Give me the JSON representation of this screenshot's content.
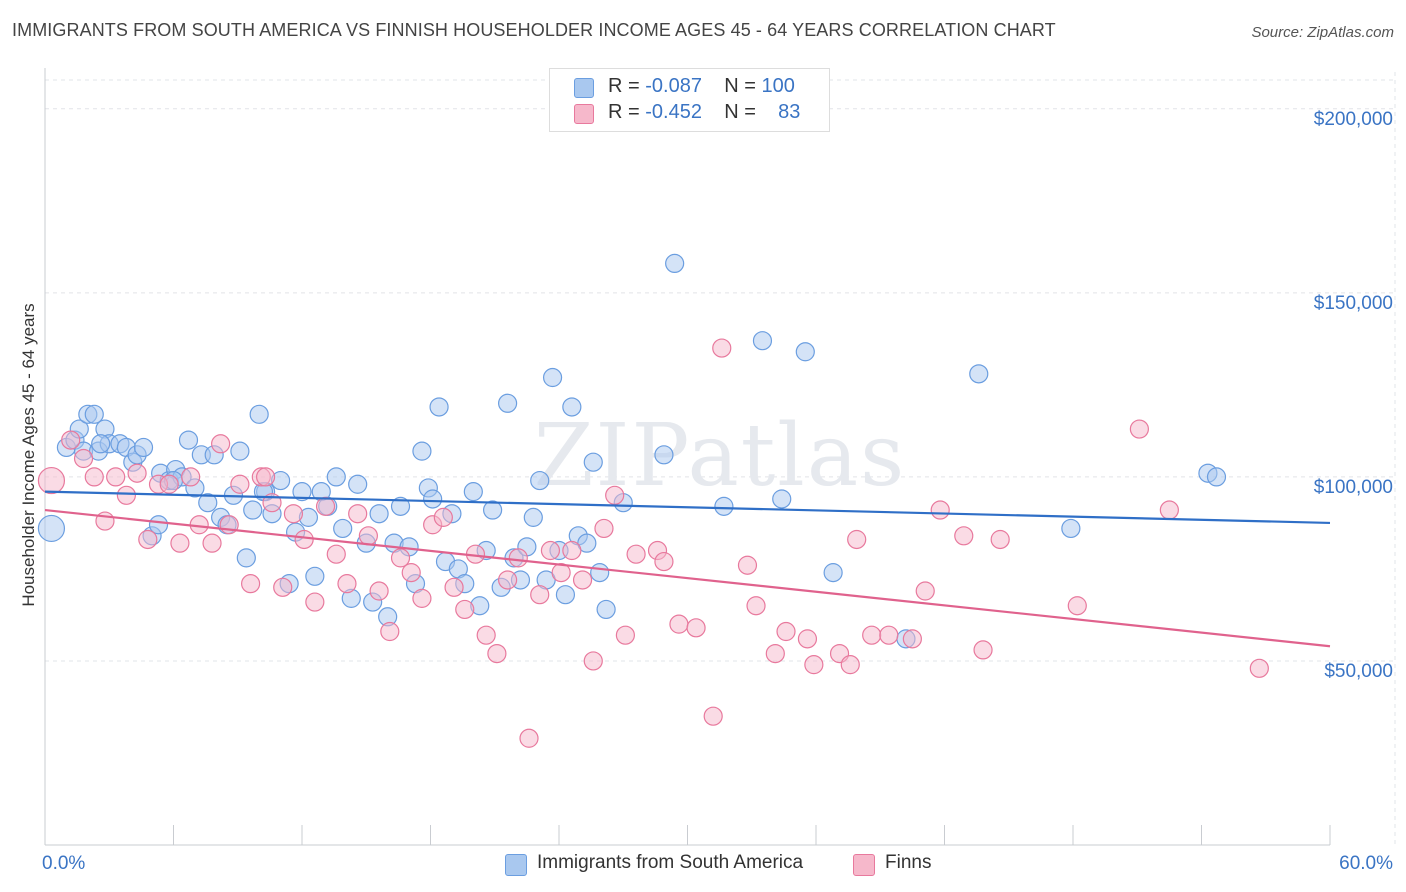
{
  "title": "IMMIGRANTS FROM SOUTH AMERICA VS FINNISH HOUSEHOLDER INCOME AGES 45 - 64 YEARS CORRELATION CHART",
  "source": "Source: ZipAtlas.com",
  "watermark": "ZIPatlas",
  "legend": {
    "rows": [
      {
        "r_label": "R = ",
        "r_value": "-0.087",
        "n_label": "N = ",
        "n_value": "100",
        "color": "#a9c8ef"
      },
      {
        "r_label": "R = ",
        "r_value": "-0.452",
        "n_label": "N = ",
        "n_value": "83",
        "color": "#f6b8cb"
      }
    ]
  },
  "bottom_legend": {
    "blue": "Immigrants from South America",
    "pink": "Finns"
  },
  "chart_data": {
    "type": "scatter",
    "title": "IMMIGRANTS FROM SOUTH AMERICA VS FINNISH HOUSEHOLDER INCOME AGES 45 - 64 YEARS CORRELATION CHART",
    "xlabel": "",
    "ylabel": "Householder Income Ages 45 - 64 years",
    "xlim": [
      0,
      60
    ],
    "ylim": [
      0,
      210000
    ],
    "x_tick_labels": [
      "0.0%",
      "60.0%"
    ],
    "y_ticks": [
      {
        "value": 50000,
        "label": "$50,000"
      },
      {
        "value": 100000,
        "label": "$100,000"
      },
      {
        "value": 150000,
        "label": "$150,000"
      },
      {
        "value": 200000,
        "label": "$200,000"
      }
    ],
    "grid": true,
    "legend_placement": "top-center",
    "series": [
      {
        "name": "Immigrants from South America",
        "color": "#6b9ee0",
        "fill": "#a9c8ef",
        "trend": {
          "x": [
            0,
            60
          ],
          "y": [
            96000,
            87500
          ]
        },
        "points": [
          [
            0.3,
            86000
          ],
          [
            1.0,
            108000
          ],
          [
            1.4,
            110000
          ],
          [
            1.6,
            113000
          ],
          [
            1.8,
            107000
          ],
          [
            2.0,
            117000
          ],
          [
            2.3,
            117000
          ],
          [
            2.5,
            107000
          ],
          [
            2.8,
            113000
          ],
          [
            3.0,
            109000
          ],
          [
            3.5,
            109000
          ],
          [
            3.8,
            108000
          ],
          [
            4.1,
            104000
          ],
          [
            4.3,
            106000
          ],
          [
            4.6,
            108000
          ],
          [
            5.0,
            84000
          ],
          [
            5.3,
            87000
          ],
          [
            5.4,
            101000
          ],
          [
            5.8,
            99000
          ],
          [
            6.1,
            102000
          ],
          [
            6.4,
            100000
          ],
          [
            6.7,
            110000
          ],
          [
            7.0,
            97000
          ],
          [
            7.3,
            106000
          ],
          [
            7.6,
            93000
          ],
          [
            7.9,
            106000
          ],
          [
            8.2,
            89000
          ],
          [
            8.5,
            87000
          ],
          [
            8.8,
            95000
          ],
          [
            9.1,
            107000
          ],
          [
            9.4,
            78000
          ],
          [
            9.7,
            91000
          ],
          [
            10.0,
            117000
          ],
          [
            10.3,
            96000
          ],
          [
            10.6,
            90000
          ],
          [
            11.0,
            99000
          ],
          [
            11.4,
            71000
          ],
          [
            11.7,
            85000
          ],
          [
            12.0,
            96000
          ],
          [
            12.3,
            89000
          ],
          [
            12.6,
            73000
          ],
          [
            12.9,
            96000
          ],
          [
            13.2,
            92000
          ],
          [
            13.6,
            100000
          ],
          [
            13.9,
            86000
          ],
          [
            14.3,
            67000
          ],
          [
            14.6,
            98000
          ],
          [
            15.0,
            82000
          ],
          [
            15.3,
            66000
          ],
          [
            15.6,
            90000
          ],
          [
            16.0,
            62000
          ],
          [
            16.3,
            82000
          ],
          [
            16.6,
            92000
          ],
          [
            17.0,
            81000
          ],
          [
            17.3,
            71000
          ],
          [
            17.6,
            107000
          ],
          [
            17.9,
            97000
          ],
          [
            18.1,
            94000
          ],
          [
            18.4,
            119000
          ],
          [
            18.7,
            77000
          ],
          [
            19.0,
            90000
          ],
          [
            19.3,
            75000
          ],
          [
            19.6,
            71000
          ],
          [
            20.0,
            96000
          ],
          [
            20.3,
            65000
          ],
          [
            20.6,
            80000
          ],
          [
            20.9,
            91000
          ],
          [
            21.3,
            70000
          ],
          [
            21.6,
            120000
          ],
          [
            21.9,
            78000
          ],
          [
            22.2,
            72000
          ],
          [
            22.5,
            81000
          ],
          [
            22.8,
            89000
          ],
          [
            23.1,
            99000
          ],
          [
            23.4,
            72000
          ],
          [
            23.7,
            127000
          ],
          [
            24.0,
            80000
          ],
          [
            24.3,
            68000
          ],
          [
            24.6,
            119000
          ],
          [
            24.9,
            84000
          ],
          [
            25.3,
            82000
          ],
          [
            25.6,
            104000
          ],
          [
            25.9,
            74000
          ],
          [
            26.2,
            64000
          ],
          [
            27.0,
            93000
          ],
          [
            28.9,
            106000
          ],
          [
            29.4,
            158000
          ],
          [
            31.7,
            92000
          ],
          [
            33.5,
            137000
          ],
          [
            34.4,
            94000
          ],
          [
            35.5,
            134000
          ],
          [
            36.8,
            74000
          ],
          [
            40.2,
            56000
          ],
          [
            43.6,
            128000
          ],
          [
            47.9,
            86000
          ],
          [
            54.3,
            101000
          ],
          [
            54.7,
            100000
          ],
          [
            2.6,
            109000
          ],
          [
            6.0,
            99000
          ],
          [
            10.2,
            96000
          ]
        ]
      },
      {
        "name": "Finns",
        "color": "#e8799d",
        "fill": "#f6b8cb",
        "trend": {
          "x": [
            0,
            60
          ],
          "y": [
            91000,
            54000
          ]
        },
        "points": [
          [
            0.3,
            99000
          ],
          [
            1.2,
            110000
          ],
          [
            1.8,
            105000
          ],
          [
            2.3,
            100000
          ],
          [
            2.8,
            88000
          ],
          [
            3.3,
            100000
          ],
          [
            3.8,
            95000
          ],
          [
            4.3,
            101000
          ],
          [
            4.8,
            83000
          ],
          [
            5.3,
            98000
          ],
          [
            5.8,
            98000
          ],
          [
            6.3,
            82000
          ],
          [
            6.8,
            100000
          ],
          [
            7.2,
            87000
          ],
          [
            7.8,
            82000
          ],
          [
            8.2,
            109000
          ],
          [
            8.6,
            87000
          ],
          [
            9.1,
            98000
          ],
          [
            9.6,
            71000
          ],
          [
            10.1,
            100000
          ],
          [
            10.6,
            93000
          ],
          [
            11.1,
            70000
          ],
          [
            11.6,
            90000
          ],
          [
            12.1,
            83000
          ],
          [
            12.6,
            66000
          ],
          [
            13.1,
            92000
          ],
          [
            13.6,
            79000
          ],
          [
            14.1,
            71000
          ],
          [
            14.6,
            90000
          ],
          [
            15.1,
            84000
          ],
          [
            15.6,
            69000
          ],
          [
            16.1,
            58000
          ],
          [
            16.6,
            78000
          ],
          [
            17.1,
            74000
          ],
          [
            17.6,
            67000
          ],
          [
            18.1,
            87000
          ],
          [
            18.6,
            89000
          ],
          [
            19.1,
            70000
          ],
          [
            19.6,
            64000
          ],
          [
            20.1,
            79000
          ],
          [
            20.6,
            57000
          ],
          [
            21.1,
            52000
          ],
          [
            21.6,
            72000
          ],
          [
            22.1,
            78000
          ],
          [
            22.6,
            29000
          ],
          [
            23.1,
            68000
          ],
          [
            23.6,
            80000
          ],
          [
            24.1,
            74000
          ],
          [
            24.6,
            80000
          ],
          [
            25.1,
            72000
          ],
          [
            25.6,
            50000
          ],
          [
            26.1,
            86000
          ],
          [
            26.6,
            95000
          ],
          [
            27.1,
            57000
          ],
          [
            27.6,
            79000
          ],
          [
            28.6,
            80000
          ],
          [
            28.9,
            77000
          ],
          [
            29.6,
            60000
          ],
          [
            30.4,
            59000
          ],
          [
            31.2,
            35000
          ],
          [
            31.6,
            135000
          ],
          [
            32.8,
            76000
          ],
          [
            33.2,
            65000
          ],
          [
            34.1,
            52000
          ],
          [
            34.6,
            58000
          ],
          [
            35.6,
            56000
          ],
          [
            35.9,
            49000
          ],
          [
            37.1,
            52000
          ],
          [
            37.6,
            49000
          ],
          [
            37.9,
            83000
          ],
          [
            38.6,
            57000
          ],
          [
            39.4,
            57000
          ],
          [
            40.5,
            56000
          ],
          [
            41.1,
            69000
          ],
          [
            41.8,
            91000
          ],
          [
            42.9,
            84000
          ],
          [
            43.8,
            53000
          ],
          [
            44.6,
            83000
          ],
          [
            48.2,
            65000
          ],
          [
            51.1,
            113000
          ],
          [
            52.5,
            91000
          ],
          [
            56.7,
            48000
          ],
          [
            10.3,
            100000
          ]
        ]
      }
    ]
  }
}
